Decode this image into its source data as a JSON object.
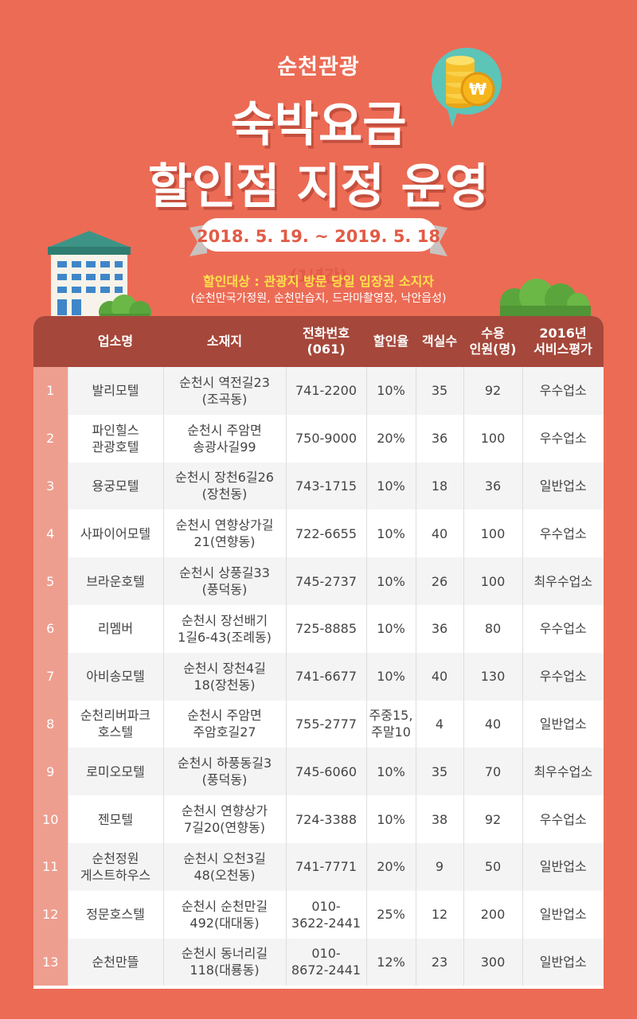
{
  "header": {
    "subtitle": "순천관광",
    "title_line1": "숙박요금",
    "title_line2": "할인점 지정 운영",
    "period": "2018. 5. 19. ~ 2019. 5. 18 (1년간)",
    "target": "할인대상 : 관광지 방문 당일 입장권 소지자",
    "target_note": "(순천만국가정원, 순천만습지, 드라마촬영장, 낙안읍성)"
  },
  "colors": {
    "background": "#ec6b55",
    "header_row": "#a5473a",
    "number_column": "#ee9e8f",
    "highlight_text": "#fde24a"
  },
  "icons": [
    "building-icon",
    "coin-speech-bubble-icon",
    "bush-icon"
  ],
  "table": {
    "columns": [
      "",
      "업소명",
      "소재지",
      "전화번호\n(061)",
      "할인율",
      "객실수",
      "수용\n인원(명)",
      "2016년\n서비스평가"
    ],
    "rows": [
      [
        "1",
        "발리모텔",
        "순천시 역전길23\n(조곡동)",
        "741-2200",
        "10%",
        "35",
        "92",
        "우수업소"
      ],
      [
        "2",
        "파인힐스\n관광호텔",
        "순천시 주암면\n송광사길99",
        "750-9000",
        "20%",
        "36",
        "100",
        "우수업소"
      ],
      [
        "3",
        "용궁모텔",
        "순천시 장천6길26\n(장천동)",
        "743-1715",
        "10%",
        "18",
        "36",
        "일반업소"
      ],
      [
        "4",
        "사파이어모텔",
        "순천시 연향상가길\n21(연향동)",
        "722-6655",
        "10%",
        "40",
        "100",
        "우수업소"
      ],
      [
        "5",
        "브라운호텔",
        "순천시 상풍길33\n(풍덕동)",
        "745-2737",
        "10%",
        "26",
        "100",
        "최우수업소"
      ],
      [
        "6",
        "리멤버",
        "순천시 장선배기\n1길6-43(조례동)",
        "725-8885",
        "10%",
        "36",
        "80",
        "우수업소"
      ],
      [
        "7",
        "아비송모텔",
        "순천시 장천4길\n18(장천동)",
        "741-6677",
        "10%",
        "40",
        "130",
        "우수업소"
      ],
      [
        "8",
        "순천리버파크\n호스텔",
        "순천시 주암면\n주암호길27",
        "755-2777",
        "주중15,\n주말10",
        "4",
        "40",
        "일반업소"
      ],
      [
        "9",
        "로미오모텔",
        "순천시 하풍동길3\n(풍덕동)",
        "745-6060",
        "10%",
        "35",
        "70",
        "최우수업소"
      ],
      [
        "10",
        "젠모텔",
        "순천시 연향상가\n7길20(연향동)",
        "724-3388",
        "10%",
        "38",
        "92",
        "우수업소"
      ],
      [
        "11",
        "순천정원\n게스트하우스",
        "순천시 오천3길\n48(오천동)",
        "741-7771",
        "20%",
        "9",
        "50",
        "일반업소"
      ],
      [
        "12",
        "정문호스텔",
        "순천시 순천만길\n492(대대동)",
        "010-\n3622-2441",
        "25%",
        "12",
        "200",
        "일반업소"
      ],
      [
        "13",
        "순천만뜰",
        "순천시 동너리길\n118(대룡동)",
        "010-\n8672-2441",
        "12%",
        "23",
        "300",
        "일반업소"
      ]
    ]
  }
}
